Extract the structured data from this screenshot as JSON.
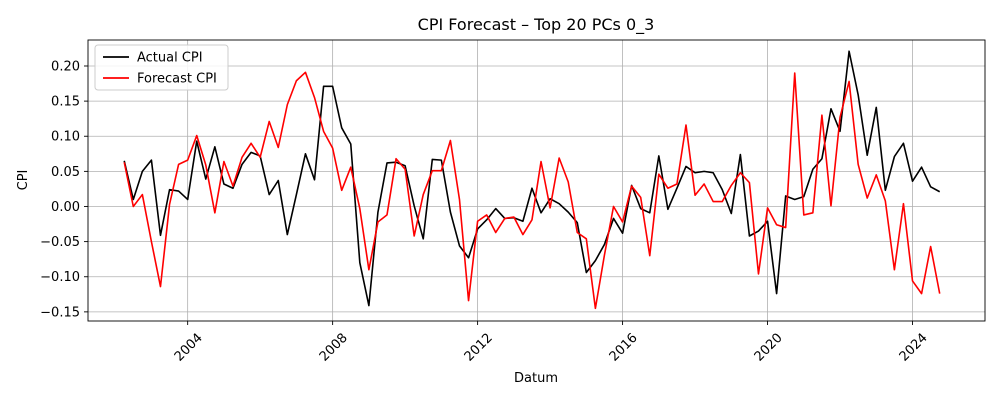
{
  "chart_data": {
    "type": "line",
    "title": "CPI Forecast – Top 20 PCs 0_3",
    "xlabel": "Datum",
    "ylabel": "CPI",
    "xlim": [
      2001.25,
      2026.0
    ],
    "ylim": [
      -0.163,
      0.237
    ],
    "grid": true,
    "legend_position": "top-left",
    "x_tick_labels": [
      "2004",
      "2008",
      "2012",
      "2016",
      "2020",
      "2024"
    ],
    "x_ticks": [
      2004,
      2008,
      2012,
      2016,
      2020,
      2024
    ],
    "y_tick_labels": [
      "0.20",
      "0.15",
      "0.10",
      "0.05",
      "0.00",
      "−0.05",
      "−0.10",
      "−0.15"
    ],
    "y_ticks": [
      0.2,
      0.15,
      0.1,
      0.05,
      0.0,
      -0.05,
      -0.1,
      -0.15
    ],
    "series": [
      {
        "name": "Actual CPI",
        "color": "#000000",
        "x": [
          2002.25,
          2002.5,
          2002.75,
          2003.0,
          2003.25,
          2003.5,
          2003.75,
          2004.0,
          2004.25,
          2004.5,
          2004.75,
          2005.0,
          2005.25,
          2005.5,
          2005.75,
          2006.0,
          2006.25,
          2006.5,
          2006.75,
          2007.0,
          2007.25,
          2007.5,
          2007.75,
          2008.0,
          2008.25,
          2008.5,
          2008.75,
          2009.0,
          2009.25,
          2009.5,
          2009.75,
          2010.0,
          2010.25,
          2010.5,
          2010.75,
          2011.0,
          2011.25,
          2011.5,
          2011.75,
          2012.0,
          2012.25,
          2012.5,
          2012.75,
          2013.0,
          2013.25,
          2013.5,
          2013.75,
          2014.0,
          2014.25,
          2014.5,
          2014.75,
          2015.0,
          2015.25,
          2015.5,
          2015.75,
          2016.0,
          2016.25,
          2016.5,
          2016.75,
          2017.0,
          2017.25,
          2017.5,
          2017.75,
          2018.0,
          2018.25,
          2018.5,
          2018.75,
          2019.0,
          2019.25,
          2019.5,
          2019.75,
          2020.0,
          2020.25,
          2020.5,
          2020.75,
          2021.0,
          2021.25,
          2021.5,
          2021.75,
          2022.0,
          2022.25,
          2022.5,
          2022.75,
          2023.0,
          2023.25,
          2023.5,
          2023.75,
          2024.0,
          2024.25,
          2024.5,
          2024.75
        ],
        "y": [
          0.065,
          0.01,
          0.05,
          0.066,
          -0.041,
          0.024,
          0.022,
          0.01,
          0.093,
          0.039,
          0.085,
          0.032,
          0.026,
          0.06,
          0.077,
          0.072,
          0.017,
          0.037,
          -0.04,
          0.017,
          0.075,
          0.038,
          0.171,
          0.171,
          0.112,
          0.089,
          -0.08,
          -0.141,
          -0.008,
          0.062,
          0.063,
          0.058,
          0.001,
          -0.046,
          0.067,
          0.066,
          -0.008,
          -0.056,
          -0.073,
          -0.032,
          -0.019,
          -0.003,
          -0.017,
          -0.016,
          -0.021,
          0.026,
          -0.009,
          0.011,
          0.004,
          -0.008,
          -0.023,
          -0.094,
          -0.077,
          -0.054,
          -0.017,
          -0.038,
          0.03,
          -0.003,
          -0.009,
          0.072,
          -0.004,
          0.026,
          0.057,
          0.048,
          0.05,
          0.048,
          0.024,
          -0.01,
          0.074,
          -0.042,
          -0.035,
          -0.021,
          -0.124,
          0.015,
          0.01,
          0.014,
          0.053,
          0.068,
          0.139,
          0.107,
          0.221,
          0.159,
          0.073,
          0.141,
          0.023,
          0.071,
          0.09,
          0.036,
          0.056,
          0.028,
          0.021
        ]
      },
      {
        "name": "Forecast CPI",
        "color": "#ff0000",
        "x": [
          2002.25,
          2002.5,
          2002.75,
          2003.0,
          2003.25,
          2003.5,
          2003.75,
          2004.0,
          2004.25,
          2004.5,
          2004.75,
          2005.0,
          2005.25,
          2005.5,
          2005.75,
          2006.0,
          2006.25,
          2006.5,
          2006.75,
          2007.0,
          2007.25,
          2007.5,
          2007.75,
          2008.0,
          2008.25,
          2008.5,
          2008.75,
          2009.0,
          2009.25,
          2009.5,
          2009.75,
          2010.0,
          2010.25,
          2010.5,
          2010.75,
          2011.0,
          2011.25,
          2011.5,
          2011.75,
          2012.0,
          2012.25,
          2012.5,
          2012.75,
          2013.0,
          2013.25,
          2013.5,
          2013.75,
          2014.0,
          2014.25,
          2014.5,
          2014.75,
          2015.0,
          2015.25,
          2015.5,
          2015.75,
          2016.0,
          2016.25,
          2016.5,
          2016.75,
          2017.0,
          2017.25,
          2017.5,
          2017.75,
          2018.0,
          2018.25,
          2018.5,
          2018.75,
          2019.0,
          2019.25,
          2019.5,
          2019.75,
          2020.0,
          2020.25,
          2020.5,
          2020.75,
          2021.0,
          2021.25,
          2021.5,
          2021.75,
          2022.0,
          2022.25,
          2022.5,
          2022.75,
          2023.0,
          2023.25,
          2023.5,
          2023.75,
          2024.0,
          2024.25,
          2024.5,
          2024.75
        ],
        "y": [
          0.063,
          0.0,
          0.017,
          -0.05,
          -0.114,
          0.003,
          0.06,
          0.066,
          0.101,
          0.059,
          -0.009,
          0.064,
          0.029,
          0.07,
          0.09,
          0.07,
          0.121,
          0.084,
          0.145,
          0.179,
          0.191,
          0.155,
          0.107,
          0.083,
          0.023,
          0.056,
          -0.003,
          -0.09,
          -0.022,
          -0.012,
          0.068,
          0.053,
          -0.042,
          0.017,
          0.051,
          0.051,
          0.094,
          0.01,
          -0.134,
          -0.021,
          -0.012,
          -0.037,
          -0.017,
          -0.015,
          -0.04,
          -0.019,
          0.064,
          -0.002,
          0.069,
          0.035,
          -0.037,
          -0.046,
          -0.145,
          -0.069,
          0.0,
          -0.022,
          0.029,
          0.013,
          -0.07,
          0.046,
          0.026,
          0.032,
          0.116,
          0.016,
          0.032,
          0.007,
          0.007,
          0.03,
          0.048,
          0.034,
          -0.096,
          -0.002,
          -0.026,
          -0.03,
          0.19,
          -0.012,
          -0.009,
          0.13,
          0.001,
          0.127,
          0.178,
          0.06,
          0.012,
          0.045,
          0.008,
          -0.09,
          0.004,
          -0.106,
          -0.124,
          -0.057,
          -0.124
        ]
      }
    ]
  }
}
